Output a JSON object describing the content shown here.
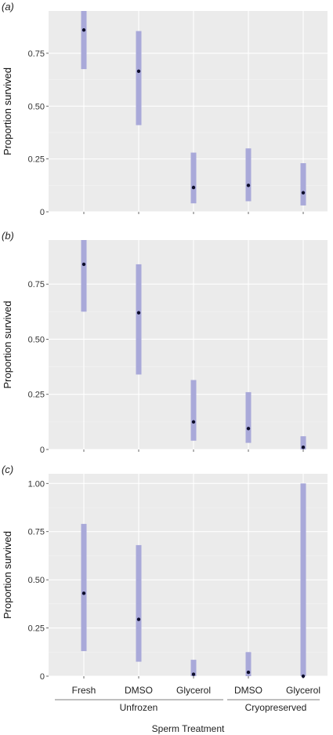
{
  "colors": {
    "panel_bg": "#ebebeb",
    "grid_major": "#ffffff",
    "grid_minor": "#f4f4f4",
    "interval": "#a9a9d9",
    "point": "#0d0d2b"
  },
  "chart_data": [
    {
      "type": "pointrange",
      "panel_label": "(a)",
      "ylabel": "Proportion survived",
      "categories": [
        "Fresh",
        "DMSO",
        "Glycerol",
        "DMSO",
        "Glycerol"
      ],
      "estimate": [
        0.86,
        0.665,
        0.115,
        0.125,
        0.09
      ],
      "lower": [
        0.675,
        0.41,
        0.04,
        0.05,
        0.03
      ],
      "upper": [
        0.95,
        0.855,
        0.28,
        0.3,
        0.23
      ],
      "ylim": [
        0,
        0.95
      ],
      "yticks": [
        0,
        0.25,
        0.5,
        0.75
      ],
      "ytick_labels": [
        "0",
        "0.25",
        "0.50",
        "0.75"
      ],
      "grid": true
    },
    {
      "type": "pointrange",
      "panel_label": "(b)",
      "ylabel": "Proportion survived",
      "categories": [
        "Fresh",
        "DMSO",
        "Glycerol",
        "DMSO",
        "Glycerol"
      ],
      "estimate": [
        0.84,
        0.62,
        0.125,
        0.095,
        0.01
      ],
      "lower": [
        0.625,
        0.34,
        0.04,
        0.03,
        0.0
      ],
      "upper": [
        0.95,
        0.84,
        0.315,
        0.26,
        0.06
      ],
      "ylim": [
        0,
        0.95
      ],
      "yticks": [
        0,
        0.25,
        0.5,
        0.75
      ],
      "ytick_labels": [
        "0",
        "0.25",
        "0.50",
        "0.75"
      ],
      "grid": true
    },
    {
      "type": "pointrange",
      "panel_label": "(c)",
      "ylabel": "Proportion survived",
      "categories": [
        "Fresh",
        "DMSO",
        "Glycerol",
        "DMSO",
        "Glycerol"
      ],
      "estimate": [
        0.43,
        0.295,
        0.01,
        0.02,
        0.0
      ],
      "lower": [
        0.13,
        0.075,
        0.0,
        0.0,
        0.0
      ],
      "upper": [
        0.79,
        0.68,
        0.085,
        0.125,
        1.0
      ],
      "ylim": [
        0,
        1.05
      ],
      "yticks": [
        0,
        0.25,
        0.5,
        0.75,
        1.0
      ],
      "ytick_labels": [
        "0",
        "0.25",
        "0.50",
        "0.75",
        "1.00"
      ],
      "grid": true
    }
  ],
  "x_axis": {
    "title": "Sperm Treatment",
    "groups": [
      {
        "label": "Unfrozen",
        "members": [
          0,
          1,
          2
        ]
      },
      {
        "label": "Cryopreserved",
        "members": [
          3,
          4
        ]
      }
    ]
  }
}
